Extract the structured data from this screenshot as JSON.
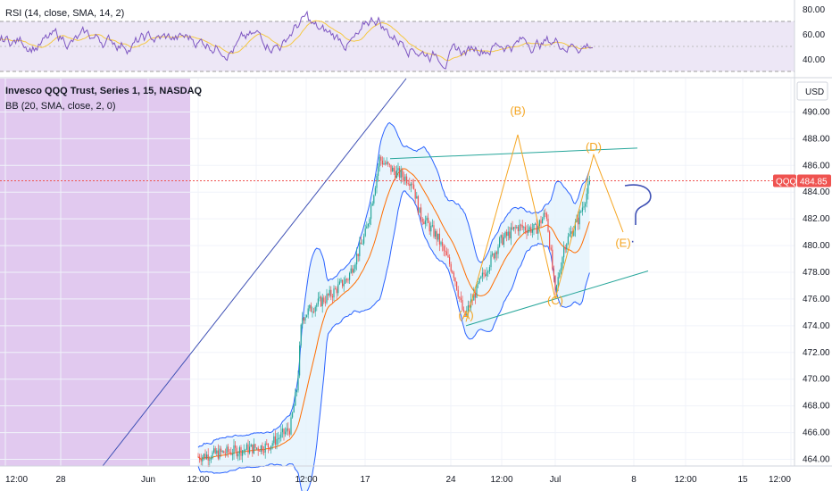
{
  "colors": {
    "rsi_line": "#7e57c2",
    "rsi_ma": "#f5c842",
    "rsi_band": "#ede7f6",
    "session_shade": "#e1c9ef",
    "candle_up": "#26a69a",
    "candle_down": "#ef5350",
    "bb_band": "#2962ff",
    "bb_fill": "#e3f2fd",
    "bb_basis": "#ff6d00",
    "trendline": "#3f51b5",
    "triangle": "#26a69a",
    "wave": "#f5a623",
    "price_tag": "#ef5350"
  },
  "rsi": {
    "legend": "RSI (14, close, SMA, 14, 2)",
    "levels": [
      "80.00",
      "60.00",
      "40.00"
    ],
    "upper": 70,
    "lower": 30
  },
  "main": {
    "title": "Invesco QQQ Trust, Series 1, 15, NASDAQ",
    "indicator": "BB (20, SMA, close, 2, 0)",
    "currency": "USD",
    "symbol": "QQQ",
    "last_price": "484.85"
  },
  "chart_data": {
    "type": "candlestick",
    "x_ticks": [
      "12:00",
      "28",
      "Jun",
      "12:00",
      "10",
      "12:00",
      "17",
      "24",
      "12:00",
      "Jul",
      "8",
      "12:00",
      "15",
      "12:00"
    ],
    "y_ticks": [
      "490.00",
      "488.00",
      "486.00",
      "484.00",
      "482.00",
      "480.00",
      "478.00",
      "476.00",
      "474.00",
      "472.00",
      "470.00",
      "468.00",
      "466.00",
      "464.00"
    ],
    "ylim": [
      463.5,
      492.5
    ],
    "last_price": 484.85,
    "price_path": [
      {
        "x": 222,
        "y": 464.2
      },
      {
        "x": 260,
        "y": 464.6
      },
      {
        "x": 300,
        "y": 465.0
      },
      {
        "x": 325,
        "y": 466.3
      },
      {
        "x": 333,
        "y": 469.5
      },
      {
        "x": 338,
        "y": 474.6
      },
      {
        "x": 350,
        "y": 475.4
      },
      {
        "x": 370,
        "y": 476.3
      },
      {
        "x": 390,
        "y": 477.6
      },
      {
        "x": 410,
        "y": 481.0
      },
      {
        "x": 420,
        "y": 484.5
      },
      {
        "x": 425,
        "y": 486.5
      },
      {
        "x": 440,
        "y": 485.6
      },
      {
        "x": 462,
        "y": 484.8
      },
      {
        "x": 470,
        "y": 482.4
      },
      {
        "x": 490,
        "y": 480.6
      },
      {
        "x": 508,
        "y": 478.0
      },
      {
        "x": 520,
        "y": 474.6
      },
      {
        "x": 540,
        "y": 477.6
      },
      {
        "x": 560,
        "y": 480.3
      },
      {
        "x": 580,
        "y": 481.4
      },
      {
        "x": 600,
        "y": 481.2
      },
      {
        "x": 612,
        "y": 482.5
      },
      {
        "x": 622,
        "y": 476.3
      },
      {
        "x": 632,
        "y": 480.0
      },
      {
        "x": 648,
        "y": 482.0
      },
      {
        "x": 662,
        "y": 484.9
      }
    ],
    "wave_labels": [
      {
        "label": "(A)",
        "x": 522,
        "y": 474.5
      },
      {
        "label": "(B)",
        "x": 580,
        "y": 489.8
      },
      {
        "label": "(C)",
        "x": 622,
        "y": 475.6
      },
      {
        "label": "(D)",
        "x": 665,
        "y": 487.1
      },
      {
        "label": "(E)",
        "x": 698,
        "y": 479.9
      }
    ],
    "annotation": "?"
  }
}
